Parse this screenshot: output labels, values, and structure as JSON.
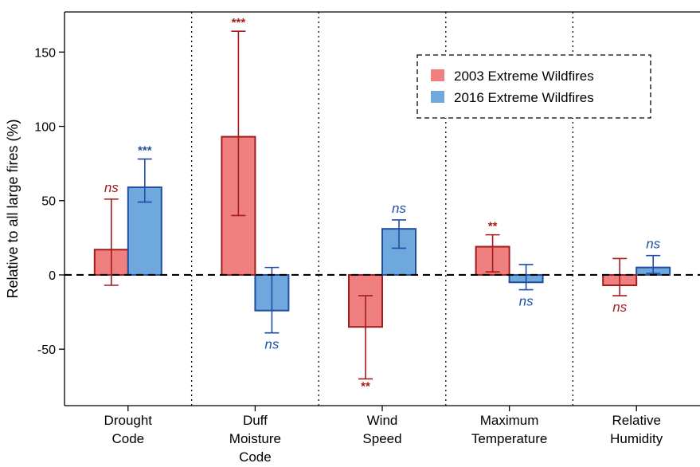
{
  "chart_data": {
    "type": "bar",
    "ylabel": "Relative to all large fires (%)",
    "ylim": [
      -88,
      177
    ],
    "yticks": [
      -50,
      0,
      50,
      100,
      150
    ],
    "categories": [
      [
        "Drought",
        "Code"
      ],
      [
        "Duff",
        "Moisture",
        "Code"
      ],
      [
        "Wind",
        "Speed"
      ],
      [
        "Maximum",
        "Temperature"
      ],
      [
        "Relative",
        "Humidity"
      ]
    ],
    "series": [
      {
        "name": "2003 Extreme Wildfires",
        "color": "#f08080",
        "edge": "#a31b1b",
        "values": [
          17,
          93,
          -35,
          19,
          -7
        ],
        "err_low": [
          -7,
          40,
          -70,
          2,
          -14
        ],
        "err_high": [
          51,
          164,
          -14,
          27,
          11
        ],
        "significance": [
          "ns",
          "***",
          "**",
          "**",
          "ns"
        ]
      },
      {
        "name": "2016 Extreme Wildfires",
        "color": "#6fa8dc",
        "edge": "#1f4ea3",
        "values": [
          59,
          -24,
          31,
          -5,
          5
        ],
        "err_low": [
          49,
          -39,
          18,
          -10,
          1
        ],
        "err_high": [
          78,
          5,
          37,
          7,
          13
        ],
        "significance": [
          "***",
          "ns",
          "ns",
          "ns",
          "ns"
        ]
      }
    ],
    "reference_line": 0,
    "legend_position": "top-right",
    "grid": false
  }
}
